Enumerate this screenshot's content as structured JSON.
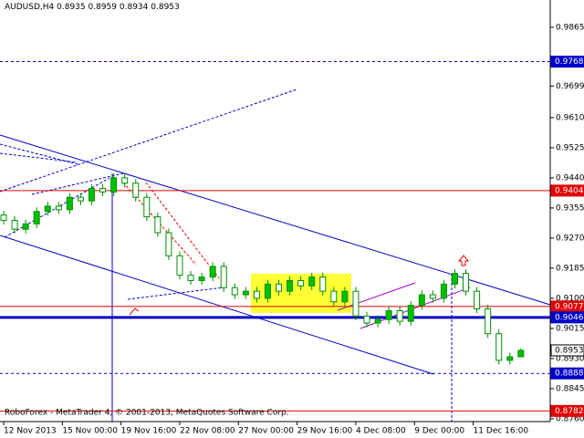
{
  "chart_data": {
    "type": "candlestick",
    "title": "AUDUSD,H4",
    "footer": "RoboForex - MetaTrader 4, © 2001-2013, MetaQuotes Software Corp.",
    "x": [
      1,
      4,
      7,
      10,
      13,
      16,
      19,
      22,
      25,
      28,
      31,
      34,
      37,
      40,
      43,
      46,
      49,
      52,
      55,
      58,
      61,
      64,
      67,
      70,
      73,
      76,
      79,
      82,
      85,
      88,
      91,
      94,
      97,
      100,
      103,
      106,
      109,
      112,
      115,
      118,
      121,
      124,
      127,
      130,
      133,
      136,
      139,
      142
    ],
    "open": [
      0.9335,
      0.932,
      0.9295,
      0.931,
      0.9345,
      0.936,
      0.935,
      0.9385,
      0.9375,
      0.941,
      0.94,
      0.944,
      0.9425,
      0.9385,
      0.933,
      0.9285,
      0.922,
      0.9165,
      0.915,
      0.916,
      0.919,
      0.913,
      0.911,
      0.912,
      0.91,
      0.914,
      0.912,
      0.915,
      0.9135,
      0.916,
      0.912,
      0.909,
      0.912,
      0.905,
      0.903,
      0.904,
      0.9065,
      0.9035,
      0.908,
      0.911,
      0.91,
      0.914,
      0.917,
      0.912,
      0.907,
      0.9,
      0.8925,
      0.8935
    ],
    "high": [
      0.9347,
      0.9332,
      0.9322,
      0.9357,
      0.9372,
      0.9372,
      0.9397,
      0.9397,
      0.9422,
      0.9422,
      0.9452,
      0.9452,
      0.9437,
      0.9397,
      0.9342,
      0.9297,
      0.9232,
      0.9177,
      0.9172,
      0.9202,
      0.9202,
      0.9142,
      0.9132,
      0.9132,
      0.9152,
      0.9152,
      0.9162,
      0.9162,
      0.9172,
      0.9172,
      0.9132,
      0.9132,
      0.9132,
      0.9062,
      0.9052,
      0.9077,
      0.9077,
      0.9092,
      0.9122,
      0.9122,
      0.9152,
      0.9182,
      0.9182,
      0.9132,
      0.9082,
      0.9012,
      0.8947,
      0.8959
    ],
    "low": [
      0.9308,
      0.9283,
      0.9283,
      0.9298,
      0.9333,
      0.9338,
      0.9338,
      0.9363,
      0.9363,
      0.9388,
      0.9388,
      0.9413,
      0.9373,
      0.9318,
      0.9273,
      0.9208,
      0.9153,
      0.9138,
      0.9138,
      0.9148,
      0.9118,
      0.9098,
      0.9098,
      0.9088,
      0.9088,
      0.9108,
      0.9108,
      0.9123,
      0.9123,
      0.9108,
      0.9078,
      0.9078,
      0.9038,
      0.9018,
      0.9018,
      0.9028,
      0.9023,
      0.9023,
      0.9068,
      0.9088,
      0.9088,
      0.9128,
      0.9108,
      0.9058,
      0.8988,
      0.8913,
      0.8913,
      0.8934
    ],
    "close": [
      0.932,
      0.9295,
      0.931,
      0.9345,
      0.936,
      0.935,
      0.9385,
      0.9375,
      0.941,
      0.94,
      0.944,
      0.9425,
      0.9385,
      0.933,
      0.9285,
      0.922,
      0.9165,
      0.915,
      0.916,
      0.919,
      0.913,
      0.911,
      0.912,
      0.91,
      0.914,
      0.912,
      0.915,
      0.9135,
      0.916,
      0.912,
      0.909,
      0.912,
      0.905,
      0.903,
      0.904,
      0.9065,
      0.9035,
      0.908,
      0.911,
      0.91,
      0.914,
      0.917,
      0.912,
      0.907,
      0.9,
      0.8925,
      0.8935,
      0.8953
    ],
    "up_color": "#00c000",
    "down_color": "#ffffff",
    "candle_outline": "#009000",
    "xlim": [
      0,
      150
    ],
    "xticks": [
      {
        "value": 1,
        "label": "12 Nov 2013"
      },
      {
        "value": 17,
        "label": "15 Nov 00:00"
      },
      {
        "value": 33,
        "label": "19 Nov 16:00"
      },
      {
        "value": 49,
        "label": "22 Nov 08:00"
      },
      {
        "value": 65,
        "label": "27 Nov 00:00"
      },
      {
        "value": 81,
        "label": "29 Nov 16:00"
      },
      {
        "value": 97,
        "label": "4 Dec 08:00"
      },
      {
        "value": 113,
        "label": "9 Dec 00:00"
      },
      {
        "value": 129,
        "label": "11 Dec 16:00"
      }
    ],
    "ylim": [
      0.8752,
      0.9942
    ],
    "yticks": [
      0.9865,
      0.9699,
      {
        "value": 0.961,
        "label": "0.9610"
      },
      0.9525,
      {
        "value": 0.944,
        "label": "0.9440"
      },
      0.9355,
      {
        "value": 0.927,
        "label": "0.9270"
      },
      0.9185,
      {
        "value": 0.91,
        "label": "0.9100"
      },
      0.9015,
      {
        "value": 0.893,
        "label": "0.8930"
      },
      0.8845,
      {
        "value": 0.876,
        "label": "0.8760"
      }
    ],
    "levels": [
      {
        "value": 0.9768,
        "color": "#0000c8",
        "style": "dashed"
      },
      {
        "value": 0.9404,
        "color": "#e00000",
        "style": "solid"
      },
      {
        "value": 0.9077,
        "color": "#e00000",
        "style": "solid"
      },
      {
        "value": 0.9046,
        "color": "#0000c8",
        "style": "double"
      },
      {
        "value": 0.8953,
        "color": "#000000",
        "style": "current"
      },
      {
        "value": 0.8888,
        "color": "#0000c8",
        "style": "dashed"
      },
      {
        "value": 0.8782,
        "color": "#e00000",
        "style": "solid"
      }
    ]
  }
}
